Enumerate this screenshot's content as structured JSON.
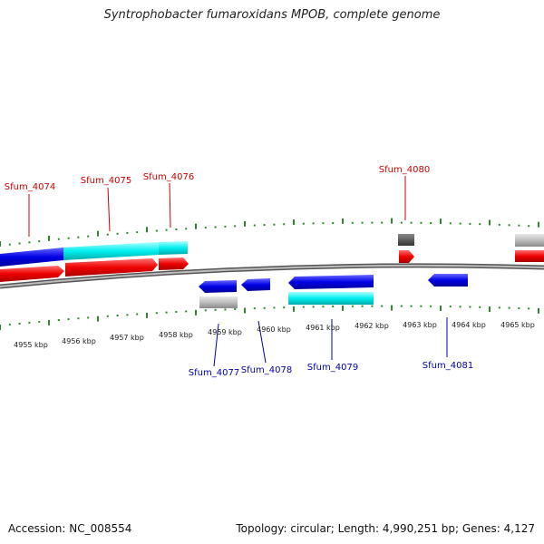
{
  "title": "Syntrophobacter fumaroxidans MPOB, complete genome",
  "footer": {
    "accession": "Accession: NC_008554",
    "summary": "Topology: circular; Length: 4,990,251 bp; Genes: 4,127"
  },
  "colors": {
    "forward_cds": "#ff0000",
    "reverse_cds": "#0000ee",
    "highlight": "#00eeee",
    "rna": "#bbbbbb",
    "rna_dark": "#555555",
    "ticks": "#2a8a2a",
    "backbone": "#888888",
    "label_top": "#cc0000",
    "label_bottom": "#0000aa"
  },
  "kbp_labels": [
    "4955 kbp",
    "4956 kbp",
    "4957 kbp",
    "4958 kbp",
    "4959 kbp",
    "4960 kbp",
    "4961 kbp",
    "4962 kbp",
    "4963 kbp",
    "4964 kbp",
    "4965 kbp"
  ],
  "top_labels": [
    "Sfum_4074",
    "Sfum_4075",
    "Sfum_4076",
    "Sfum_4080"
  ],
  "bottom_labels": [
    "Sfum_4077",
    "Sfum_4078",
    "Sfum_4079",
    "Sfum_4081"
  ]
}
